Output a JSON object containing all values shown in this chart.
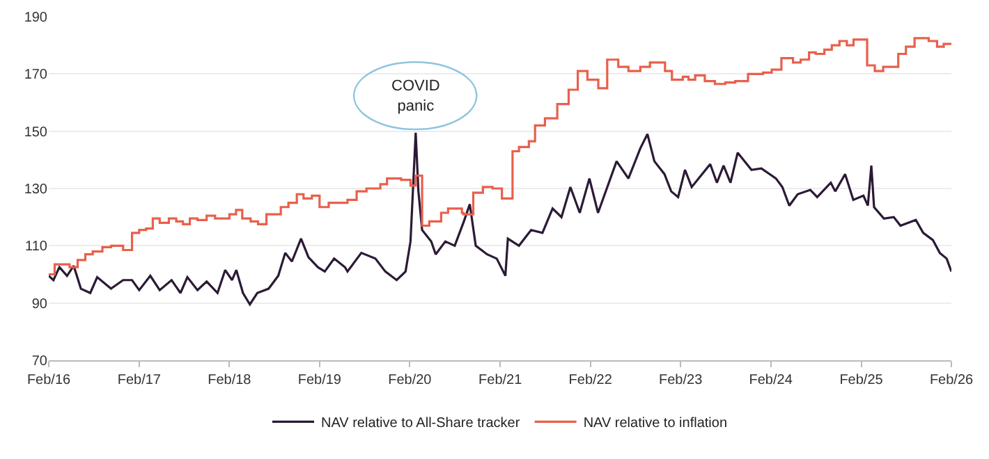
{
  "chart_data": {
    "type": "line",
    "xlim": [
      "2016-02-01",
      "2026-02-01"
    ],
    "ylim": [
      70,
      190
    ],
    "xticks": [
      {
        "value": "2016-02-01",
        "label": "Feb/16"
      },
      {
        "value": "2017-02-01",
        "label": "Feb/17"
      },
      {
        "value": "2018-02-01",
        "label": "Feb/18"
      },
      {
        "value": "2019-02-01",
        "label": "Feb/19"
      },
      {
        "value": "2020-02-01",
        "label": "Feb/20"
      },
      {
        "value": "2021-02-01",
        "label": "Feb/21"
      },
      {
        "value": "2022-02-01",
        "label": "Feb/22"
      },
      {
        "value": "2023-02-01",
        "label": "Feb/23"
      },
      {
        "value": "2024-02-01",
        "label": "Feb/24"
      },
      {
        "value": "2025-02-01",
        "label": "Feb/25"
      },
      {
        "value": "2026-02-01",
        "label": "Feb/26"
      }
    ],
    "yticks": [
      70,
      90,
      110,
      130,
      150,
      170,
      190
    ],
    "grid": "y",
    "legend": "bottom",
    "line_style": "solid",
    "marker": "none",
    "annotations": [
      "COVID\npanic"
    ],
    "series": [
      {
        "name": "NAV relative to All-Share tracker",
        "color": "#2b1a35",
        "type": "line",
        "x": [
          "2016-02-01",
          "2016-02-20",
          "2016-03-15",
          "2016-04-15",
          "2016-05-12",
          "2016-06-10",
          "2016-07-18",
          "2016-08-15",
          "2016-10-10",
          "2016-11-28",
          "2017-01-03",
          "2017-02-01",
          "2017-03-18",
          "2017-04-25",
          "2017-06-12",
          "2017-07-18",
          "2017-08-15",
          "2017-09-25",
          "2017-11-01",
          "2017-12-15",
          "2018-01-15",
          "2018-02-12",
          "2018-03-01",
          "2018-03-28",
          "2018-04-25",
          "2018-05-25",
          "2018-07-10",
          "2018-08-18",
          "2018-09-15",
          "2018-10-12",
          "2018-11-18",
          "2018-12-18",
          "2019-01-25",
          "2019-02-22",
          "2019-04-01",
          "2019-05-15",
          "2019-05-25",
          "2019-07-20",
          "2019-09-15",
          "2019-10-25",
          "2019-12-10",
          "2020-01-15",
          "2020-02-04",
          "2020-02-25",
          "2020-03-07",
          "2020-03-22",
          "2020-04-28",
          "2020-05-16",
          "2020-06-24",
          "2020-08-01",
          "2020-09-07",
          "2020-10-01",
          "2020-10-25",
          "2020-12-10",
          "2021-01-18",
          "2021-02-22",
          "2021-03-04",
          "2021-04-18",
          "2021-06-06",
          "2021-07-22",
          "2021-09-01",
          "2021-10-07",
          "2021-11-12",
          "2021-12-20",
          "2022-01-28",
          "2022-03-04",
          "2022-05-18",
          "2022-07-05",
          "2022-08-22",
          "2022-09-20",
          "2022-10-18",
          "2022-11-28",
          "2022-12-25",
          "2023-01-22",
          "2023-02-19",
          "2023-03-18",
          "2023-06-01",
          "2023-06-28",
          "2023-07-25",
          "2023-08-22",
          "2023-09-20",
          "2023-11-15",
          "2023-12-25",
          "2024-02-22",
          "2024-03-19",
          "2024-04-16",
          "2024-05-20",
          "2024-07-10",
          "2024-08-07",
          "2024-10-01",
          "2024-10-19",
          "2024-11-28",
          "2024-12-31",
          "2025-02-10",
          "2025-02-28",
          "2025-03-14",
          "2025-03-25",
          "2025-05-04",
          "2025-06-13",
          "2025-07-10",
          "2025-09-10",
          "2025-10-10",
          "2025-11-18",
          "2025-12-16",
          "2026-01-13",
          "2026-02-01"
        ],
        "values": [
          99.5,
          98,
          102.5,
          99.5,
          103,
          95,
          93.5,
          99,
          95,
          98,
          98,
          94.5,
          99.5,
          94.5,
          98,
          93.5,
          99,
          94.5,
          97.5,
          93.5,
          101.5,
          98,
          101.5,
          93.5,
          89.5,
          93.5,
          95,
          99.5,
          107.5,
          104.5,
          112.5,
          106,
          102.5,
          101,
          105.5,
          102.5,
          101,
          107.5,
          105.5,
          101,
          98,
          101,
          111.5,
          149.5,
          129,
          115.5,
          111.5,
          107,
          111.5,
          110,
          118.5,
          124.5,
          110,
          107,
          105.5,
          99.5,
          112.5,
          110,
          115.5,
          114.5,
          123,
          120,
          130.5,
          121.5,
          133.5,
          121.5,
          139.5,
          133.5,
          144,
          149,
          139.5,
          135,
          129,
          127,
          136.5,
          130.5,
          138.5,
          132,
          138,
          132,
          142.5,
          136.5,
          137,
          133.5,
          130.5,
          124,
          128,
          129.5,
          127,
          132,
          129,
          135,
          126,
          127.5,
          124,
          138,
          123.5,
          119.5,
          120,
          117,
          119,
          114.5,
          112,
          107.5,
          105.5,
          101
        ]
      },
      {
        "name": "NAV relative to inflation",
        "color": "#e8604c",
        "type": "step",
        "x": [
          "2016-02-01",
          "2016-02-25",
          "2016-04-25",
          "2016-05-28",
          "2016-06-28",
          "2016-07-28",
          "2016-09-05",
          "2016-10-10",
          "2016-11-28",
          "2017-01-03",
          "2017-02-01",
          "2017-03-01",
          "2017-03-28",
          "2017-04-25",
          "2017-06-01",
          "2017-07-01",
          "2017-07-28",
          "2017-08-25",
          "2017-09-25",
          "2017-11-01",
          "2017-12-05",
          "2018-02-01",
          "2018-02-28",
          "2018-03-25",
          "2018-04-28",
          "2018-05-28",
          "2018-07-01",
          "2018-08-28",
          "2018-09-28",
          "2018-11-01",
          "2018-11-28",
          "2019-01-01",
          "2019-02-01",
          "2019-03-10",
          "2019-05-25",
          "2019-07-01",
          "2019-08-10",
          "2019-10-05",
          "2019-11-01",
          "2019-12-28",
          "2020-02-04",
          "2020-02-25",
          "2020-03-22",
          "2020-04-20",
          "2020-06-07",
          "2020-07-05",
          "2020-08-30",
          "2020-09-05",
          "2020-10-15",
          "2020-11-23",
          "2021-01-01",
          "2021-02-08",
          "2021-03-23",
          "2021-04-18",
          "2021-05-28",
          "2021-06-22",
          "2021-08-01",
          "2021-09-20",
          "2021-11-05",
          "2021-12-12",
          "2022-01-20",
          "2022-03-05",
          "2022-04-10",
          "2022-05-25",
          "2022-07-05",
          "2022-08-22",
          "2022-09-30",
          "2022-11-30",
          "2022-12-28",
          "2023-02-10",
          "2023-03-05",
          "2023-04-01",
          "2023-05-10",
          "2023-06-20",
          "2023-08-01",
          "2023-09-10",
          "2023-11-01",
          "2024-01-01",
          "2024-02-05",
          "2024-03-15",
          "2024-05-01",
          "2024-06-01",
          "2024-07-05",
          "2024-08-01",
          "2024-09-05",
          "2024-10-05",
          "2024-11-05",
          "2024-12-05",
          "2025-01-01",
          "2025-02-25",
          "2025-03-28",
          "2025-05-01",
          "2025-07-01",
          "2025-08-01",
          "2025-09-05",
          "2025-11-01",
          "2025-12-05",
          "2026-01-01",
          "2026-02-01"
        ],
        "values": [
          100,
          103.5,
          102.5,
          105,
          107,
          108,
          109.5,
          110,
          108.5,
          114.5,
          115.5,
          116,
          119.5,
          118,
          119.5,
          118.5,
          117.5,
          119.5,
          119,
          120.5,
          119.5,
          121,
          122.5,
          119.5,
          118.5,
          117.5,
          121,
          123.5,
          125,
          128,
          126.5,
          127.5,
          123.5,
          125,
          126,
          129,
          130,
          131.5,
          133.5,
          133,
          131,
          134.5,
          117,
          118.5,
          121.5,
          123,
          121.5,
          121,
          128.5,
          130.5,
          130,
          126.5,
          143,
          144.5,
          146.5,
          152,
          154.5,
          159.5,
          164.5,
          171,
          168,
          165,
          175,
          172.5,
          171,
          172.5,
          174,
          171,
          168,
          169,
          168,
          169.5,
          167.5,
          166.5,
          167,
          167.5,
          170,
          170.5,
          171.5,
          175.5,
          174,
          175,
          177.5,
          177,
          178.5,
          180,
          181.5,
          180,
          182,
          173,
          171,
          172.5,
          177,
          179.5,
          182.5,
          181.5,
          179.5,
          180.5,
          180.5
        ]
      }
    ]
  }
}
